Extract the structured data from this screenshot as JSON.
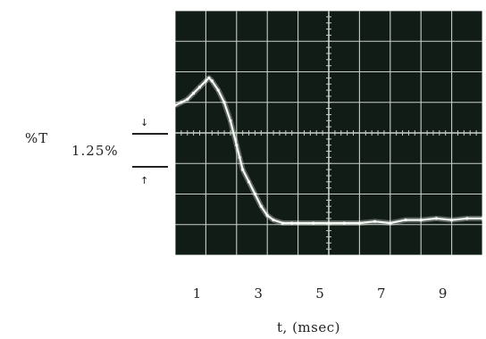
{
  "chart_data": {
    "type": "line",
    "ylabel": "%T",
    "scale_label": "1.25%",
    "xlabel": "t, (msec)",
    "x_tick_labels": [
      "1",
      "3",
      "5",
      "7",
      "9"
    ],
    "x_ticks": [
      1,
      3,
      5,
      7,
      9
    ],
    "xlim": [
      0,
      10
    ],
    "ylim": [
      -4,
      4
    ],
    "grid": true,
    "series": [
      {
        "x": [
          0.0,
          0.2,
          0.4,
          0.6,
          0.8,
          1.0,
          1.1,
          1.2,
          1.4,
          1.6,
          1.8,
          2.0,
          2.1,
          2.2,
          2.4,
          2.6,
          2.8,
          3.0,
          3.2,
          3.5,
          3.8,
          4.0,
          4.5,
          5.0,
          5.5,
          6.0,
          6.5,
          7.0,
          7.5,
          8.0,
          8.5,
          9.0,
          9.5,
          10.0
        ],
        "y": [
          0.9,
          1.0,
          1.1,
          1.3,
          1.5,
          1.7,
          1.8,
          1.7,
          1.4,
          1.0,
          0.4,
          -0.4,
          -0.8,
          -1.2,
          -1.6,
          -2.0,
          -2.4,
          -2.7,
          -2.85,
          -2.95,
          -2.95,
          -2.95,
          -2.95,
          -2.95,
          -2.95,
          -2.95,
          -2.9,
          -2.95,
          -2.85,
          -2.85,
          -2.8,
          -2.85,
          -2.8,
          -2.8
        ]
      }
    ]
  }
}
